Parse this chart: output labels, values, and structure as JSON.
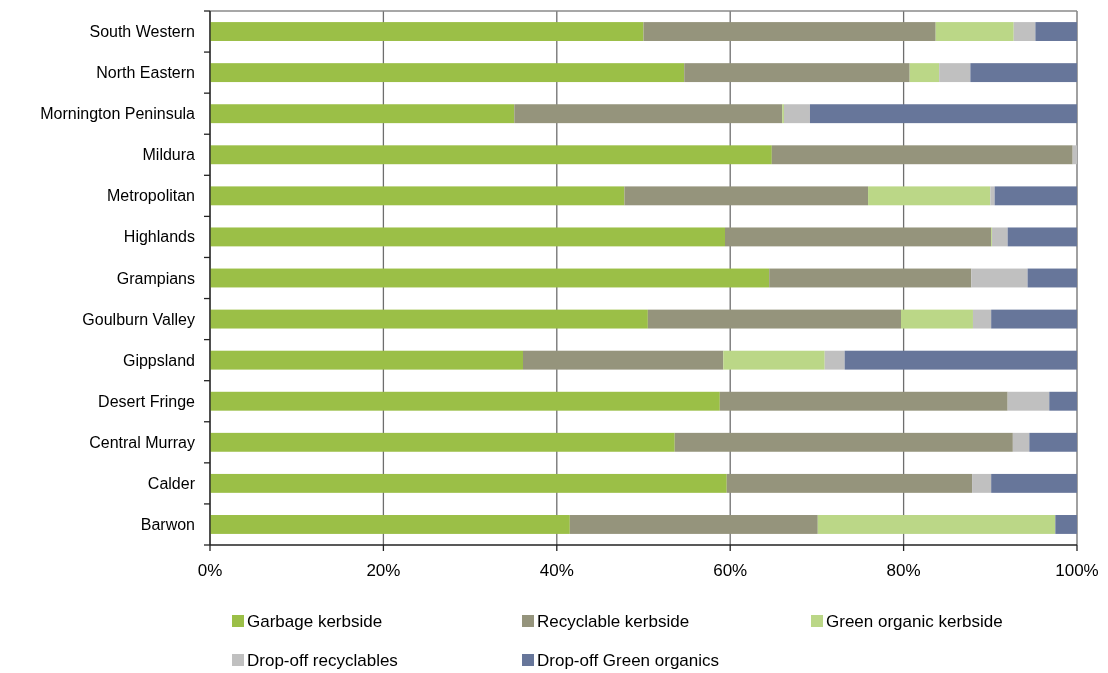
{
  "chart_data": {
    "type": "bar",
    "orientation": "horizontal",
    "stacked": true,
    "categories": [
      "South Western",
      "North Eastern",
      "Mornington Peninsula",
      "Mildura",
      "Metropolitan",
      "Highlands",
      "Grampians",
      "Goulburn Valley",
      "Gippsland",
      "Desert Fringe",
      "Central Murray",
      "Calder",
      "Barwon"
    ],
    "series": [
      {
        "name": "Garbage kerbside",
        "color": "#9bbf47",
        "values": [
          50.0,
          54.7,
          35.1,
          64.8,
          47.8,
          59.4,
          64.5,
          50.5,
          36.1,
          58.8,
          53.6,
          59.6,
          41.5
        ]
      },
      {
        "name": "Recyclable kerbside",
        "color": "#95947c",
        "values": [
          33.7,
          26.0,
          30.9,
          34.7,
          28.1,
          30.7,
          23.3,
          29.2,
          23.1,
          33.2,
          39.0,
          28.3,
          28.6
        ]
      },
      {
        "name": "Green organic kerbside",
        "color": "#bbd787",
        "values": [
          9.0,
          3.4,
          0.2,
          0,
          14.1,
          0.1,
          0,
          8.3,
          11.7,
          0,
          0,
          0,
          27.4
        ]
      },
      {
        "name": "Drop-off recyclables",
        "color": "#c0c0c0",
        "values": [
          2.5,
          3.6,
          3.0,
          0.5,
          0.5,
          1.8,
          6.5,
          2.1,
          2.3,
          4.8,
          1.9,
          2.2,
          0
        ]
      },
      {
        "name": "Drop-off Green organics",
        "color": "#67769a",
        "values": [
          4.8,
          12.3,
          30.8,
          0,
          9.5,
          8.0,
          5.7,
          9.9,
          26.8,
          3.2,
          5.5,
          9.9,
          2.5
        ]
      }
    ],
    "xlim": [
      0,
      100
    ],
    "xticks": [
      {
        "value": 0,
        "label": "0%"
      },
      {
        "value": 20,
        "label": "20%"
      },
      {
        "value": 40,
        "label": "40%"
      },
      {
        "value": 60,
        "label": "60%"
      },
      {
        "value": 80,
        "label": "80%"
      },
      {
        "value": 100,
        "label": "100%"
      }
    ],
    "grid": "x",
    "legend": "bottom"
  }
}
